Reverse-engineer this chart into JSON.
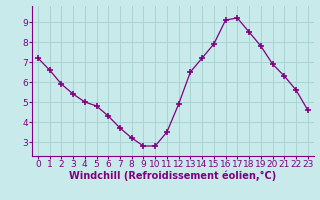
{
  "x": [
    0,
    1,
    2,
    3,
    4,
    5,
    6,
    7,
    8,
    9,
    10,
    11,
    12,
    13,
    14,
    15,
    16,
    17,
    18,
    19,
    20,
    21,
    22,
    23
  ],
  "y": [
    7.2,
    6.6,
    5.9,
    5.4,
    5.0,
    4.8,
    4.3,
    3.7,
    3.2,
    2.8,
    2.8,
    3.5,
    4.9,
    6.5,
    7.2,
    7.9,
    9.1,
    9.2,
    8.5,
    7.8,
    6.9,
    6.3,
    5.6,
    4.6
  ],
  "line_color": "#800080",
  "marker": "P",
  "marker_color": "#800080",
  "bg_color": "#c8eaea",
  "grid_color": "#aad4d4",
  "xlabel": "Windchill (Refroidissement éolien,°C)",
  "xlabel_color": "#800080",
  "tick_color": "#800080",
  "spine_color": "#800080",
  "xlim": [
    -0.5,
    23.5
  ],
  "ylim": [
    2.3,
    9.8
  ],
  "yticks": [
    3,
    4,
    5,
    6,
    7,
    8,
    9
  ],
  "xticks": [
    0,
    1,
    2,
    3,
    4,
    5,
    6,
    7,
    8,
    9,
    10,
    11,
    12,
    13,
    14,
    15,
    16,
    17,
    18,
    19,
    20,
    21,
    22,
    23
  ],
  "font_size": 6.5,
  "label_font_size": 7
}
